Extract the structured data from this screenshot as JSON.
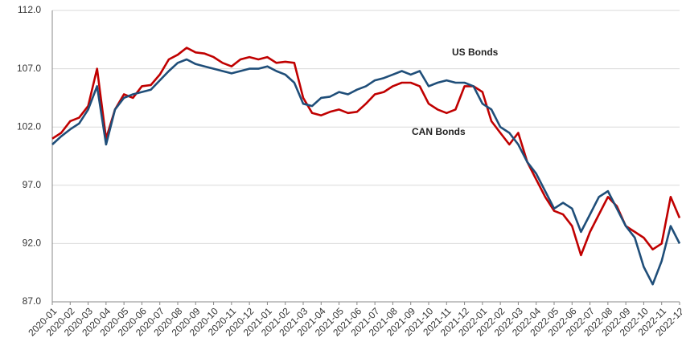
{
  "chart_data": {
    "type": "line",
    "categories": [
      "2020-01",
      null,
      "2020-02",
      null,
      "2020-03",
      null,
      "2020-04",
      null,
      "2020-05",
      null,
      "2020-06",
      null,
      "2020-07",
      null,
      "2020-08",
      null,
      "2020-09",
      null,
      "2020-10",
      null,
      "2020-11",
      null,
      "2020-12",
      null,
      "2021-01",
      null,
      "2021-02",
      null,
      "2021-03",
      null,
      "2021-04",
      null,
      "2021-05",
      null,
      "2021-06",
      null,
      "2021-07",
      null,
      "2021-08",
      null,
      "2021-09",
      null,
      "2021-10",
      null,
      "2021-11",
      null,
      "2021-12",
      null,
      "2022-01",
      null,
      "2022-02",
      null,
      "2022-03",
      null,
      "2022-04",
      null,
      "2022-05",
      null,
      "2022-06",
      null,
      "2022-07",
      null,
      "2022-08",
      null,
      "2022-09",
      null,
      "2022-10",
      null,
      "2022-11",
      null,
      "2022-12"
    ],
    "series": [
      {
        "name": "US Bonds",
        "color": "#1f4e79",
        "values": [
          100.5,
          101.2,
          101.8,
          102.3,
          103.5,
          105.5,
          100.5,
          103.5,
          104.5,
          104.8,
          105.0,
          105.2,
          106.0,
          106.8,
          107.5,
          107.8,
          107.4,
          107.2,
          107.0,
          106.8,
          106.6,
          106.8,
          107.0,
          107.0,
          107.2,
          106.8,
          106.5,
          105.8,
          104.0,
          103.8,
          104.5,
          104.6,
          105.0,
          104.8,
          105.2,
          105.5,
          106.0,
          106.2,
          106.5,
          106.8,
          106.5,
          106.8,
          105.5,
          105.8,
          106.0,
          105.8,
          105.8,
          105.5,
          104.0,
          103.5,
          102.0,
          101.5,
          100.5,
          99.0,
          98.0,
          96.5,
          95.0,
          95.5,
          95.0,
          93.0,
          94.5,
          96.0,
          96.5,
          95.0,
          93.5,
          92.5,
          90.0,
          88.5,
          90.5,
          93.5,
          92.0
        ]
      },
      {
        "name": "CAN Bonds",
        "color": "#c00000",
        "values": [
          101.0,
          101.5,
          102.5,
          102.8,
          103.8,
          107.0,
          101.0,
          103.5,
          104.8,
          104.5,
          105.5,
          105.6,
          106.5,
          107.8,
          108.2,
          108.8,
          108.4,
          108.3,
          108.0,
          107.5,
          107.2,
          107.8,
          108.0,
          107.8,
          108.0,
          107.5,
          107.6,
          107.5,
          104.5,
          103.2,
          103.0,
          103.3,
          103.5,
          103.2,
          103.3,
          104.0,
          104.8,
          105.0,
          105.5,
          105.8,
          105.8,
          105.5,
          104.0,
          103.5,
          103.2,
          103.5,
          105.5,
          105.5,
          105.0,
          102.5,
          101.5,
          100.5,
          101.5,
          99.0,
          97.5,
          96.0,
          94.8,
          94.5,
          93.5,
          91.0,
          93.0,
          94.5,
          96.0,
          95.2,
          93.5,
          93.0,
          92.5,
          91.5,
          92.0,
          96.0,
          94.2
        ]
      }
    ],
    "ylim": [
      87,
      112
    ],
    "yticks": [
      {
        "value": 87,
        "label": "87.0"
      },
      {
        "value": 92,
        "label": "92.0"
      },
      {
        "value": 97,
        "label": "97.0"
      },
      {
        "value": 102,
        "label": "102.0"
      },
      {
        "value": 107,
        "label": "107.0"
      },
      {
        "value": 112,
        "label": "112.0"
      }
    ],
    "grid": true,
    "annotations": [
      "US Bonds",
      "CAN Bonds"
    ]
  }
}
